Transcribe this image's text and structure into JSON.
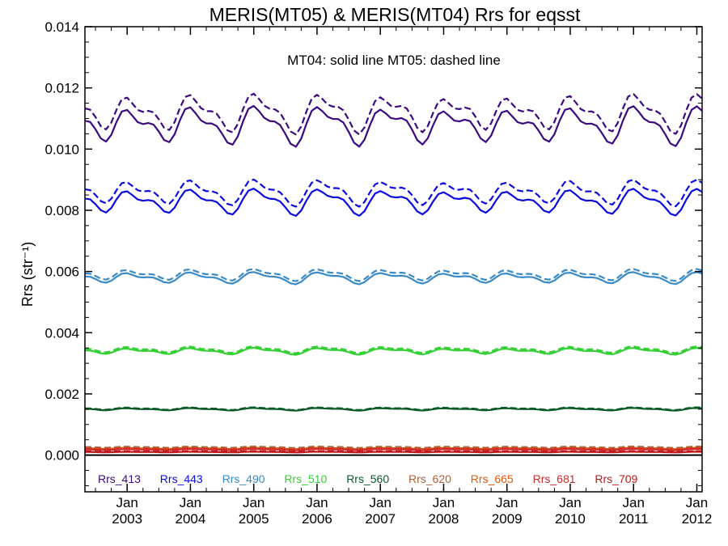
{
  "chart_data": {
    "type": "line",
    "title": "MERIS(MT05) & MERIS(MT04)  Rrs for eqsst",
    "annotation": "MT04: solid line   MT05: dashed line",
    "ylabel": "Rrs (str⁻¹)",
    "xlabel": "",
    "x_range": [
      "2002-05",
      "2012-02"
    ],
    "ylim": [
      -0.0012,
      0.014
    ],
    "y_ticks": [
      "0.000",
      "0.002",
      "0.004",
      "0.006",
      "0.008",
      "0.010",
      "0.012",
      "0.014"
    ],
    "x_ticks": [
      {
        "month": "Jan",
        "year": "2003",
        "date": "2003-01"
      },
      {
        "month": "Jan",
        "year": "2004",
        "date": "2004-01"
      },
      {
        "month": "Jan",
        "year": "2005",
        "date": "2005-01"
      },
      {
        "month": "Jan",
        "year": "2006",
        "date": "2006-01"
      },
      {
        "month": "Jan",
        "year": "2007",
        "date": "2007-01"
      },
      {
        "month": "Jan",
        "year": "2008",
        "date": "2008-01"
      },
      {
        "month": "Jan",
        "year": "2009",
        "date": "2009-01"
      },
      {
        "month": "Jan",
        "year": "2010",
        "date": "2010-01"
      },
      {
        "month": "Jan",
        "year": "2011",
        "date": "2011-01"
      },
      {
        "month": "Jan",
        "year": "2012",
        "date": "2012-01"
      }
    ],
    "grid": false,
    "legend_position": "bottom",
    "zero_line": 0.0,
    "series": [
      {
        "name": "Rrs_413",
        "color": "#3b0a80",
        "mt04_mean": 0.0108,
        "mt05_mean": 0.0112,
        "seasonal_amplitude": 0.0006
      },
      {
        "name": "Rrs_443",
        "color": "#0a0ae0",
        "mt04_mean": 0.0083,
        "mt05_mean": 0.0086,
        "seasonal_amplitude": 0.0004
      },
      {
        "name": "Rrs_490",
        "color": "#3a8ac8",
        "mt04_mean": 0.0058,
        "mt05_mean": 0.0059,
        "seasonal_amplitude": 0.00018
      },
      {
        "name": "Rrs_510",
        "color": "#35d035",
        "mt04_mean": 0.0034,
        "mt05_mean": 0.00345,
        "seasonal_amplitude": 0.0001
      },
      {
        "name": "Rrs_560",
        "color": "#0a5a28",
        "mt04_mean": 0.0015,
        "mt05_mean": 0.00152,
        "seasonal_amplitude": 4e-05
      },
      {
        "name": "Rrs_620",
        "color": "#a8643a",
        "mt04_mean": 0.00022,
        "mt05_mean": 0.00026,
        "seasonal_amplitude": 2e-05
      },
      {
        "name": "Rrs_665",
        "color": "#e05a0a",
        "mt04_mean": 0.0002,
        "mt05_mean": 0.00022,
        "seasonal_amplitude": 2e-05
      },
      {
        "name": "Rrs_681",
        "color": "#d02a2a",
        "mt04_mean": 0.00018,
        "mt05_mean": 0.0002,
        "seasonal_amplitude": 2e-05
      },
      {
        "name": "Rrs_709",
        "color": "#c01818",
        "mt04_mean": 0.0001,
        "mt05_mean": 0.00012,
        "seasonal_amplitude": 1e-05
      }
    ]
  }
}
